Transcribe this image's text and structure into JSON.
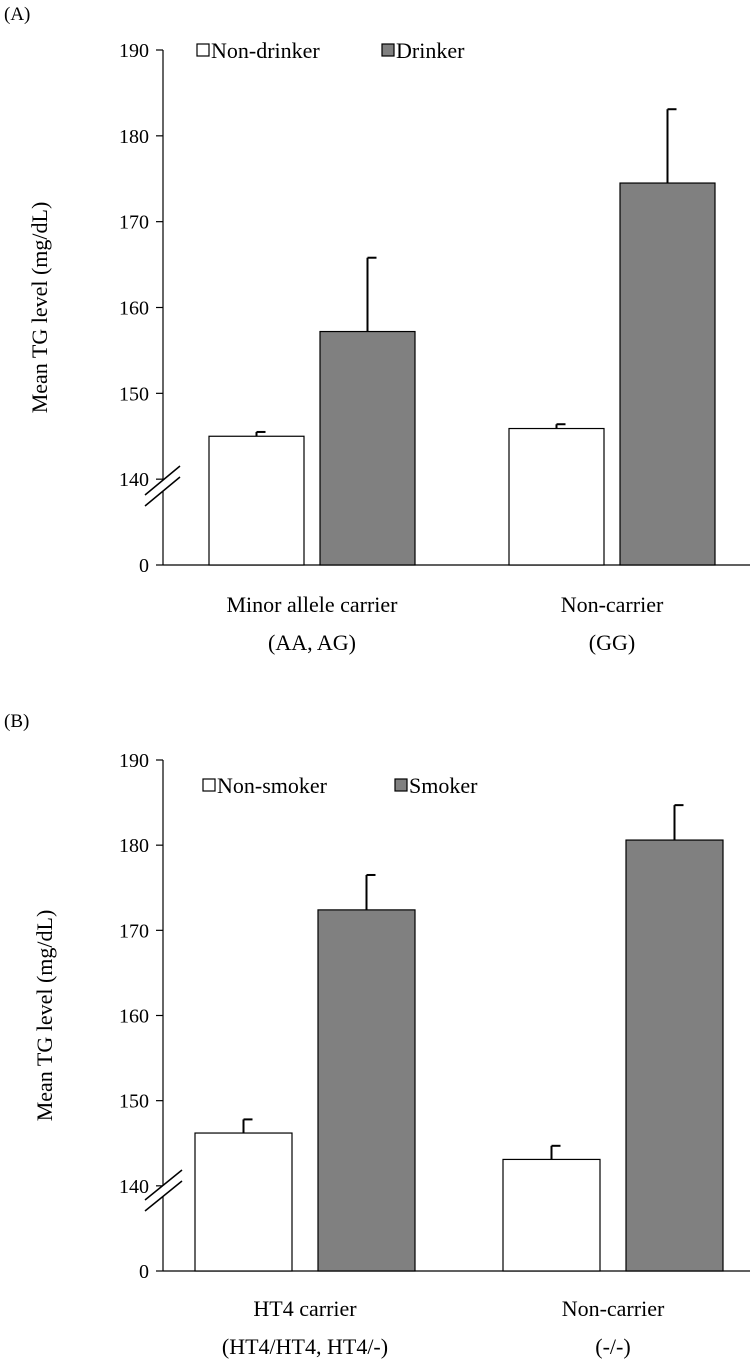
{
  "colors": {
    "non_exposed": "#ffffff",
    "exposed": "#808080",
    "stroke": "#000000"
  },
  "chart_data": [
    {
      "type": "bar",
      "panel_label": "(A)",
      "ylabel": "Mean TG level (mg/dL)",
      "axis_break": true,
      "yticks": [
        0,
        140,
        150,
        160,
        170,
        180,
        190
      ],
      "categories": [
        {
          "line1": "Minor allele carrier",
          "line2": "(AA, AG)"
        },
        {
          "line1": "Non-carrier",
          "line2": "(GG)"
        }
      ],
      "series": [
        {
          "name": "Non-drinker",
          "color": "#ffffff",
          "values": [
            145.0,
            145.9
          ],
          "errors": [
            0.5,
            0.5
          ]
        },
        {
          "name": "Drinker",
          "color": "#808080",
          "values": [
            157.2,
            174.5
          ],
          "errors": [
            8.6,
            8.6
          ]
        }
      ],
      "ylim": [
        140,
        190
      ],
      "legend_position": "top-left",
      "grid": false
    },
    {
      "type": "bar",
      "panel_label": "(B)",
      "ylabel": "Mean TG level (mg/dL)",
      "axis_break": true,
      "yticks": [
        0,
        140,
        150,
        160,
        170,
        180,
        190
      ],
      "categories": [
        {
          "line1": "HT4 carrier",
          "line2": "(HT4/HT4, HT4/-)"
        },
        {
          "line1": "Non-carrier",
          "line2": "(-/-)"
        }
      ],
      "series": [
        {
          "name": "Non-smoker",
          "color": "#ffffff",
          "values": [
            146.2,
            143.1
          ],
          "errors": [
            1.6,
            1.6
          ]
        },
        {
          "name": "Smoker",
          "color": "#808080",
          "values": [
            172.4,
            180.6
          ],
          "errors": [
            4.1,
            4.1
          ]
        }
      ],
      "ylim": [
        140,
        190
      ],
      "legend_position": "top-left",
      "grid": false
    }
  ]
}
